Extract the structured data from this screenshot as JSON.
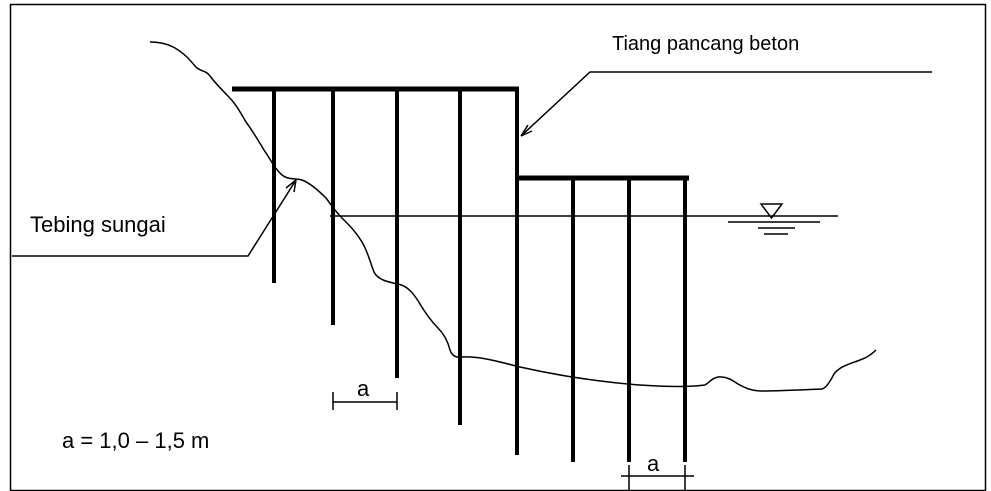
{
  "labels": {
    "pile_label": "Tiang pancang beton",
    "bank_label": "Tebing sungai",
    "spacing_symbol_upper": "a",
    "spacing_symbol_lower": "a",
    "spacing_formula": "a = 1,0 – 1,5 m"
  },
  "symbols": {
    "water_level_icon": "triangle-down-water-level"
  },
  "colors": {
    "line": "#000000",
    "background": "#ffffff"
  }
}
